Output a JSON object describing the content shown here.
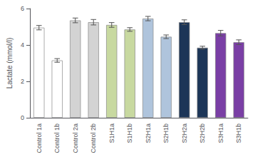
{
  "chart_data": {
    "type": "bar",
    "ylabel": "Lactate (mmol/l)",
    "categories": [
      "Control 1a",
      "Control 1b",
      "Control 2a",
      "Control 2b",
      "S1H1a",
      "S1H1b",
      "S2H1a",
      "S2H1b",
      "S2H2a",
      "S2H2b",
      "S3H1a",
      "S3H1b"
    ],
    "values": [
      4.95,
      3.15,
      5.35,
      5.25,
      5.1,
      4.85,
      5.45,
      4.45,
      5.25,
      3.85,
      4.65,
      4.15
    ],
    "errors": [
      0.12,
      0.1,
      0.13,
      0.15,
      0.13,
      0.1,
      0.12,
      0.1,
      0.13,
      0.08,
      0.15,
      0.13
    ],
    "colors": [
      "#ffffff",
      "#ffffff",
      "#d3d3d3",
      "#d3d3d3",
      "#c8d9a0",
      "#c8d9a0",
      "#afc4dc",
      "#afc4dc",
      "#1c3557",
      "#1c3557",
      "#7a3fa5",
      "#7a3fa5"
    ],
    "ylim": [
      0,
      6
    ],
    "yticks": [
      0,
      2,
      4,
      6
    ],
    "grid": false
  }
}
